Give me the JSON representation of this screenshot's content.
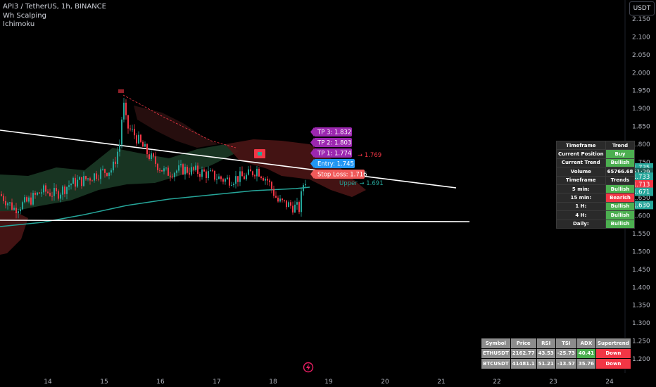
{
  "legend": {
    "symbol_line": "API3 / TetherUS, 1h, BINANCE",
    "indicator1": "Wh Scalping",
    "indicator2": "Ichimoku"
  },
  "currency_button": "USDT",
  "colors": {
    "up": "#26a69a",
    "down": "#f23645",
    "cloud_green": "#1b3a26",
    "cloud_red": "#4a1515",
    "ma_line": "#26a69a",
    "trend_line": "#ffffff",
    "tp_label": "#9c27b0",
    "entry_label": "#2196f3",
    "stop_label": "#f05a5a"
  },
  "chart_data": {
    "type": "candlestick",
    "y_ticks": [
      "2.150",
      "2.100",
      "2.050",
      "2.000",
      "1.950",
      "1.900",
      "1.850",
      "1.800",
      "1.750",
      "1.700",
      "1.650",
      "1.600",
      "1.550",
      "1.500",
      "1.450",
      "1.400",
      "1.350",
      "1.300",
      "1.250",
      "1.200"
    ],
    "ylim": [
      1.17,
      2.18
    ],
    "x_ticks": [
      "14",
      "15",
      "16",
      "17",
      "18",
      "19",
      "20",
      "21",
      "22",
      "23",
      "24"
    ],
    "price_badges": [
      {
        "label": "1.735",
        "value": 1.735,
        "color": "#26a69a"
      },
      {
        "label": "51:29",
        "value": 1.722,
        "color": "#1c5e57"
      },
      {
        "label": "1.733",
        "value": 1.709,
        "color": "#26a69a"
      },
      {
        "label": "1.713",
        "value": 1.688,
        "color": "#f23645"
      },
      {
        "label": "1.671",
        "value": 1.667,
        "color": "#26a69a"
      },
      {
        "label": "1.630",
        "value": 1.63,
        "color": "#26a69a"
      }
    ],
    "trade_labels": {
      "tp3": "TP 3: 1.832",
      "tp2": "TP 2: 1.803",
      "tp1": "TP 1: 1.774",
      "entry": "Entry: 1.745",
      "stop_loss": "Stop Loss: 1.716",
      "tp1_extra": "→ 1.769",
      "upper": "Upper → 1.691"
    }
  },
  "trend_table": {
    "header": [
      "Timeframe",
      "Trend"
    ],
    "rows": [
      {
        "label": "Current Position",
        "value": "Buy",
        "color": "green"
      },
      {
        "label": "Current Trend",
        "value": "Bullish",
        "color": "green"
      },
      {
        "label": "Volume",
        "value": "65766.68",
        "color": ""
      }
    ],
    "header2": [
      "Timeframe",
      "Trends"
    ],
    "rows2": [
      {
        "label": "5 min:",
        "value": "Bullish",
        "color": "green"
      },
      {
        "label": "15 min:",
        "value": "Bearish",
        "color": "red"
      },
      {
        "label": "1 H:",
        "value": "Bullish",
        "color": "green"
      },
      {
        "label": "4 H:",
        "value": "Bullish",
        "color": "green"
      },
      {
        "label": "Daily:",
        "value": "Bullish",
        "color": "green"
      }
    ]
  },
  "symbol_table": {
    "headers": [
      "Symbol",
      "Price",
      "RSI",
      "TSI",
      "ADX",
      "Supertrend"
    ],
    "rows": [
      {
        "symbol": "ETHUSDT",
        "price": "2162.77",
        "rsi": "43.53",
        "tsi": "-25.73",
        "adx": "40.41",
        "adx_color": "green",
        "supertrend": "Down"
      },
      {
        "symbol": "BTCUSDT",
        "price": "41481.1",
        "rsi": "51.21",
        "tsi": "-13.57",
        "adx": "35.76",
        "adx_color": "",
        "supertrend": "Down"
      }
    ]
  }
}
